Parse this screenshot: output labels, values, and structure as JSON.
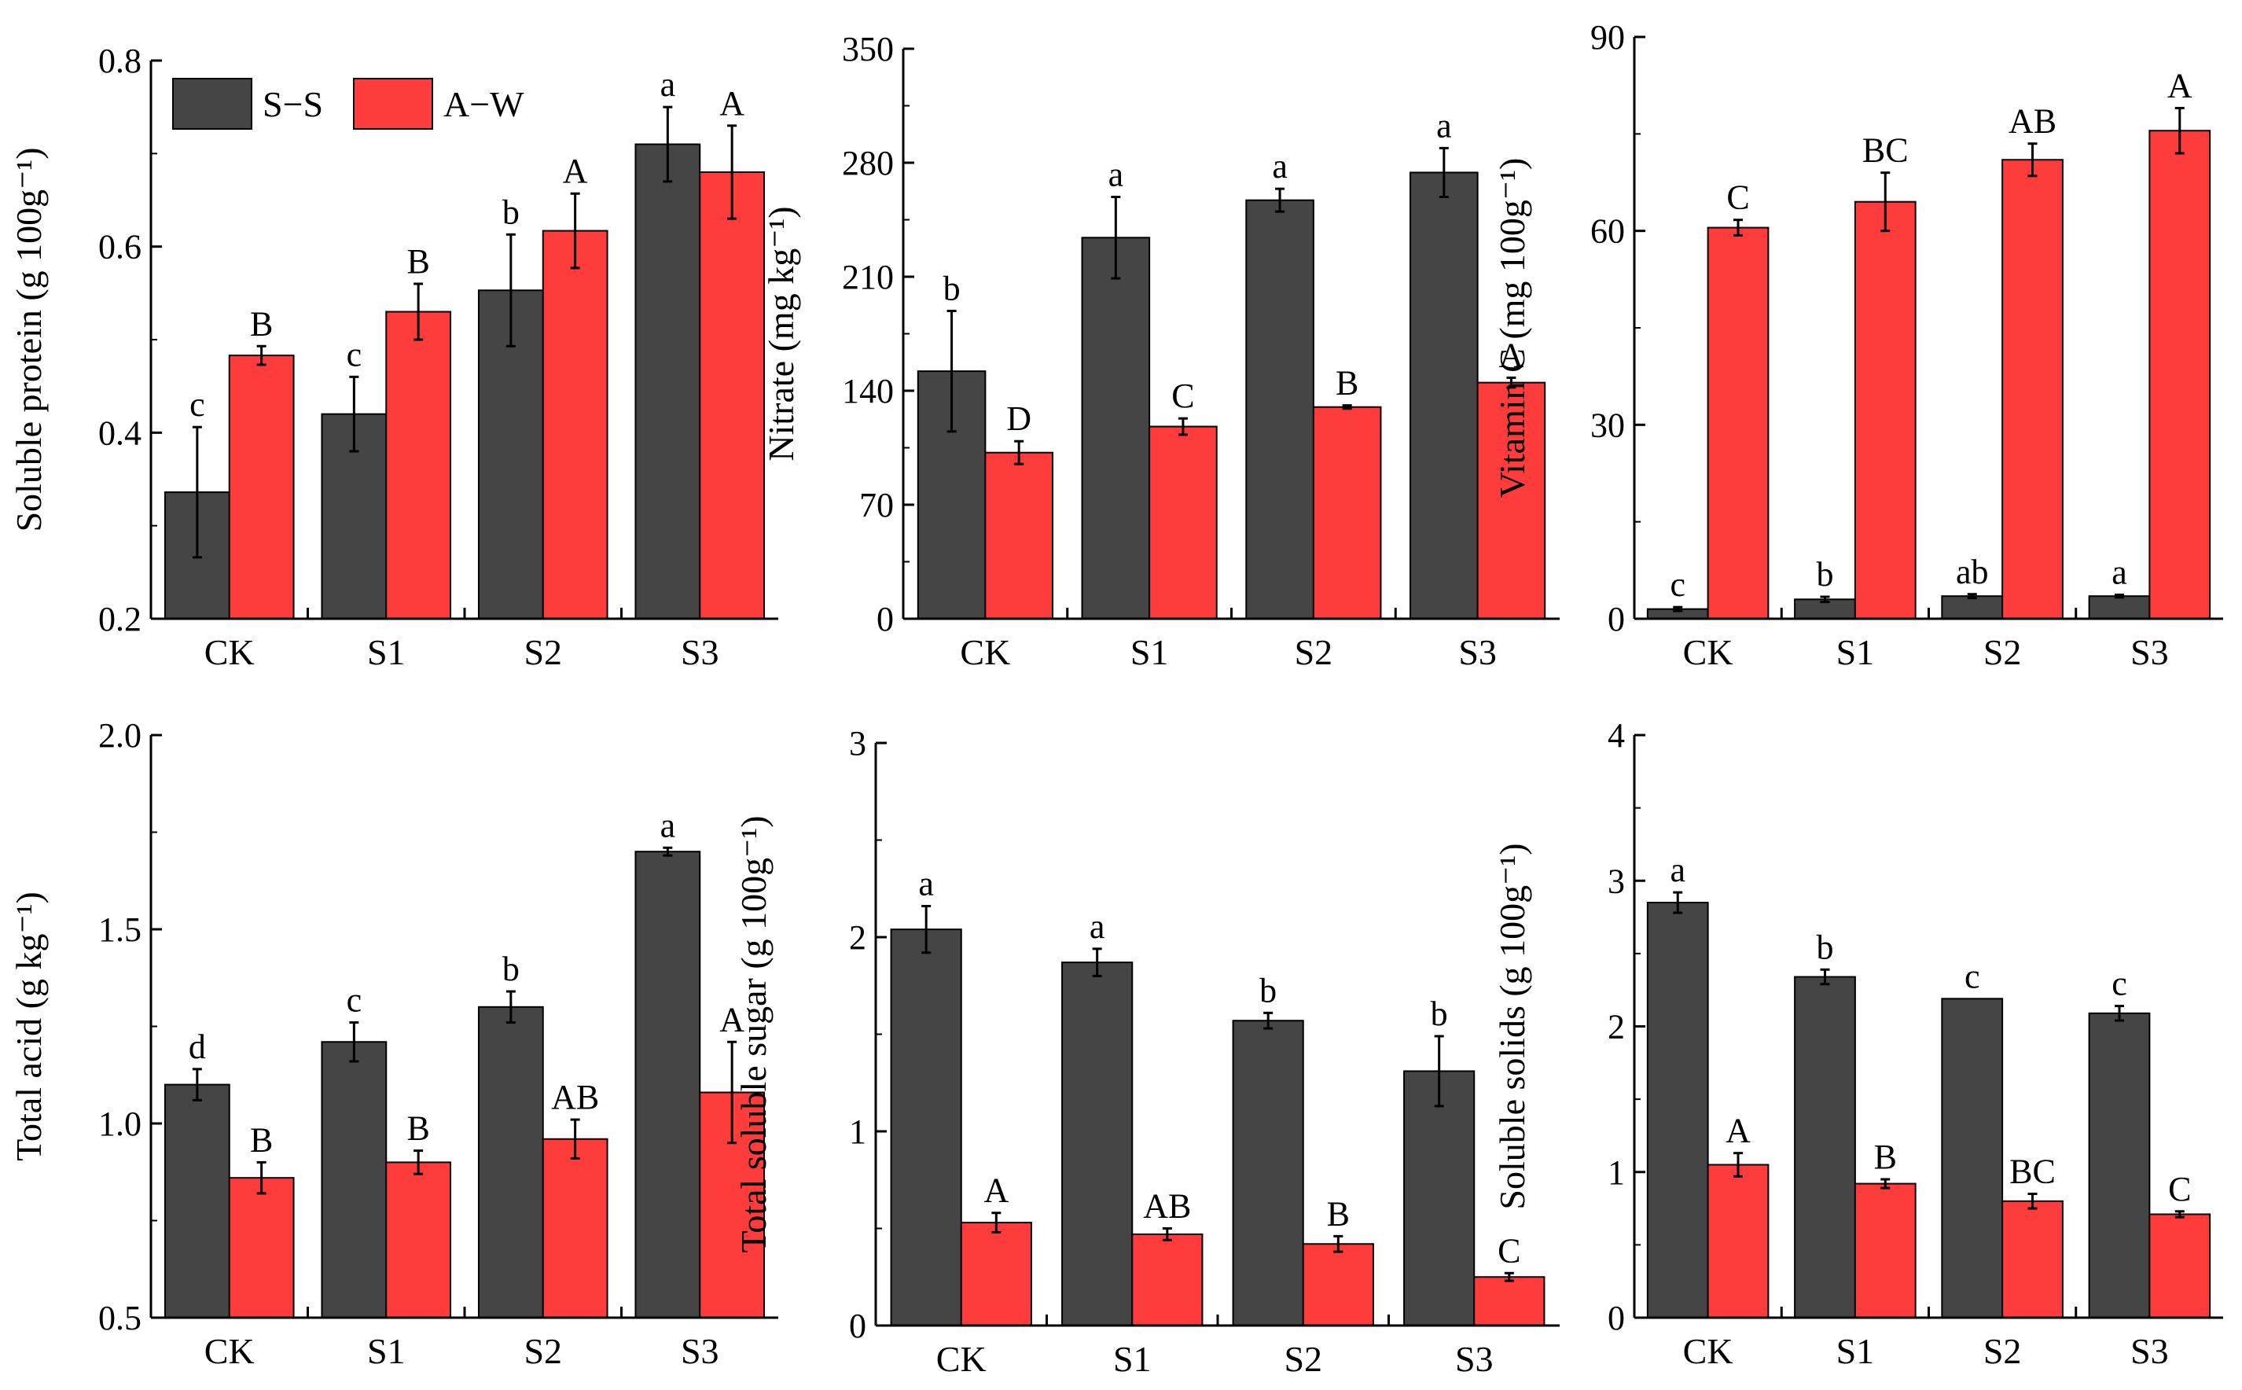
{
  "legend": {
    "entries": [
      {
        "name": "S−S",
        "color": "#454545"
      },
      {
        "name": "A−W",
        "color": "#ff3c3c"
      }
    ]
  },
  "colors": {
    "S-S": "#454545",
    "A-W": "#ff3c3c",
    "axis": "#000000"
  },
  "chart_data": [
    {
      "id": "soluble-protein",
      "type": "bar",
      "ylabel": "Soluble protein (g 100g⁻¹)",
      "categories": [
        "CK",
        "S1",
        "S2",
        "S3"
      ],
      "ylim": [
        0.2,
        0.8
      ],
      "yticks": [
        "0.2",
        "0.4",
        "0.6",
        "0.8"
      ],
      "series": [
        {
          "name": "S−S",
          "values": [
            0.336,
            0.42,
            0.553,
            0.71
          ],
          "errors": [
            0.07,
            0.04,
            0.06,
            0.04
          ],
          "labels": [
            "c",
            "c",
            "b",
            "a"
          ]
        },
        {
          "name": "A−W",
          "values": [
            0.483,
            0.53,
            0.617,
            0.68
          ],
          "errors": [
            0.01,
            0.03,
            0.04,
            0.05
          ],
          "labels": [
            "B",
            "B",
            "A",
            "A"
          ]
        }
      ]
    },
    {
      "id": "nitrate",
      "type": "bar",
      "ylabel": "Nitrate (mg kg⁻¹)",
      "categories": [
        "CK",
        "S1",
        "S2",
        "S3"
      ],
      "ylim": [
        0,
        350
      ],
      "yticks": [
        "0",
        "70",
        "140",
        "210",
        "280",
        "350"
      ],
      "series": [
        {
          "name": "S−S",
          "values": [
            152,
            234,
            257,
            274
          ],
          "errors": [
            37,
            25,
            7,
            15
          ],
          "labels": [
            "b",
            "a",
            "a",
            "a"
          ]
        },
        {
          "name": "A−W",
          "values": [
            102,
            118,
            130,
            145
          ],
          "errors": [
            7,
            5,
            1,
            3
          ],
          "labels": [
            "D",
            "C",
            "B",
            "A"
          ]
        }
      ]
    },
    {
      "id": "vitamin-c",
      "type": "bar",
      "ylabel": "Vitamin C (mg 100g⁻¹)",
      "categories": [
        "CK",
        "S1",
        "S2",
        "S3"
      ],
      "ylim": [
        0,
        90
      ],
      "yticks": [
        "0",
        "30",
        "60",
        "90"
      ],
      "series": [
        {
          "name": "S−S",
          "values": [
            1.5,
            3.0,
            3.5,
            3.5
          ],
          "errors": [
            0.3,
            0.4,
            0.3,
            0.2
          ],
          "labels": [
            "c",
            "b",
            "ab",
            "a"
          ]
        },
        {
          "name": "A−W",
          "values": [
            60.5,
            64.5,
            71,
            75.5
          ],
          "errors": [
            1.2,
            4.5,
            2.5,
            3.5
          ],
          "labels": [
            "C",
            "BC",
            "AB",
            "A"
          ]
        }
      ]
    },
    {
      "id": "total-acid",
      "type": "bar",
      "ylabel": "Total acid (g kg⁻¹)",
      "categories": [
        "CK",
        "S1",
        "S2",
        "S3"
      ],
      "ylim": [
        0.5,
        2.0
      ],
      "yticks": [
        "0.5",
        "1.0",
        "1.5",
        "2.0"
      ],
      "series": [
        {
          "name": "S−S",
          "values": [
            1.1,
            1.21,
            1.3,
            1.7
          ],
          "errors": [
            0.04,
            0.05,
            0.04,
            0.01
          ],
          "labels": [
            "d",
            "c",
            "b",
            "a"
          ]
        },
        {
          "name": "A−W",
          "values": [
            0.86,
            0.9,
            0.96,
            1.08
          ],
          "errors": [
            0.04,
            0.03,
            0.05,
            0.13
          ],
          "labels": [
            "B",
            "B",
            "AB",
            "A"
          ]
        }
      ]
    },
    {
      "id": "total-soluble-sugar",
      "type": "bar",
      "ylabel": "Total soluble sugar (g 100g⁻¹)",
      "categories": [
        "CK",
        "S1",
        "S2",
        "S3"
      ],
      "ylim": [
        0,
        3
      ],
      "yticks": [
        "0",
        "1",
        "2",
        "3"
      ],
      "series": [
        {
          "name": "S−S",
          "values": [
            2.04,
            1.87,
            1.57,
            1.31
          ],
          "errors": [
            0.12,
            0.07,
            0.04,
            0.18
          ],
          "labels": [
            "a",
            "a",
            "b",
            "b"
          ]
        },
        {
          "name": "A−W",
          "values": [
            0.53,
            0.47,
            0.42,
            0.25
          ],
          "errors": [
            0.05,
            0.03,
            0.04,
            0.02
          ],
          "labels": [
            "A",
            "AB",
            "B",
            "C"
          ]
        }
      ]
    },
    {
      "id": "soluble-solids",
      "type": "bar",
      "ylabel": "Soluble solids (g 100g⁻¹)",
      "categories": [
        "CK",
        "S1",
        "S2",
        "S3"
      ],
      "ylim": [
        0,
        4
      ],
      "yticks": [
        "0",
        "1",
        "2",
        "3",
        "4"
      ],
      "series": [
        {
          "name": "S−S",
          "values": [
            2.85,
            2.34,
            2.19,
            2.09
          ],
          "errors": [
            0.07,
            0.05,
            0,
            0.05
          ],
          "labels": [
            "a",
            "b",
            "c",
            "c"
          ]
        },
        {
          "name": "A−W",
          "values": [
            1.05,
            0.92,
            0.8,
            0.71
          ],
          "errors": [
            0.08,
            0.03,
            0.05,
            0.02
          ],
          "labels": [
            "A",
            "B",
            "BC",
            "C"
          ]
        }
      ]
    }
  ]
}
